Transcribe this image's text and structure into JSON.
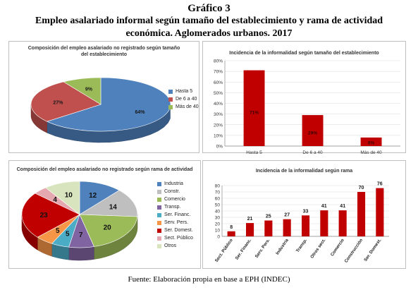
{
  "header": {
    "line1": "Gráfico 3",
    "line2": "Empleo asalariado informal según tamaño del establecimiento y rama de actividad",
    "line3": "económica. Aglomerados urbanos. 2017"
  },
  "footer": "Fuente: Elaboración propia en base a EPH (INDEC)",
  "chart_data": [
    {
      "type": "pie",
      "title": "Composición del empleo asalariado no registrado según tamaño del establecimiento",
      "title_line1": "Composición del empleo asalariado no registrado según tamaño",
      "title_line2": "del establecimiento",
      "categories": [
        "Hasta 5",
        "De 6 a 40",
        "Más de 40"
      ],
      "values": [
        64,
        27,
        9
      ],
      "labels": [
        "64%",
        "27%",
        "9%"
      ],
      "colors": [
        "#4f81bd",
        "#c0504d",
        "#9bbb59"
      ],
      "legend": "right"
    },
    {
      "type": "bar",
      "title": "Incidencia de la informalidad según tamaño del establecimiento",
      "categories": [
        "Hasta 5",
        "De 6 a 40",
        "Más de 40"
      ],
      "values": [
        71,
        29,
        8
      ],
      "labels": [
        "71%",
        "29%",
        "8%"
      ],
      "yticks": [
        "0%",
        "10%",
        "20%",
        "30%",
        "40%",
        "50%",
        "60%",
        "70%",
        "80%"
      ],
      "ylim": [
        0,
        80
      ],
      "color": "#c00000",
      "grid": true
    },
    {
      "type": "pie",
      "title": "Composición del empleo asalariado no registrado según rama de actividad",
      "categories": [
        "Industria",
        "Constr.",
        "Comercio",
        "Transp.",
        "Ser. Financ.",
        "Serv. Pers.",
        "Ser. Domest.",
        "Sect. Público",
        "Otros"
      ],
      "values": [
        12,
        14,
        20,
        7,
        5,
        5,
        23,
        4,
        10
      ],
      "labels": [
        "12",
        "14",
        "20",
        "7",
        "5",
        "5",
        "23",
        "4",
        "10"
      ],
      "colors": [
        "#4f81bd",
        "#bfbfbf",
        "#9bbb59",
        "#8064a2",
        "#4bacc6",
        "#f79646",
        "#c00000",
        "#e6a8b0",
        "#d7e4bd"
      ],
      "legend": "right"
    },
    {
      "type": "bar",
      "title": "Incidencia de la informalidad según rama",
      "categories": [
        "Sect. Público",
        "Ser. Financ.",
        "Serv. Pers.",
        "Industria",
        "Transp.",
        "Otros sect.",
        "Comercio",
        "Construcción",
        "Ser. Domest."
      ],
      "values": [
        8,
        21,
        25,
        27,
        33,
        41,
        41,
        70,
        76
      ],
      "labels": [
        "8",
        "21",
        "25",
        "27",
        "33",
        "41",
        "41",
        "70",
        "76"
      ],
      "yticks": [
        "0",
        "10",
        "20",
        "30",
        "40",
        "50",
        "60",
        "70",
        "80"
      ],
      "ylim": [
        0,
        80
      ],
      "color": "#c00000",
      "grid": true
    }
  ]
}
